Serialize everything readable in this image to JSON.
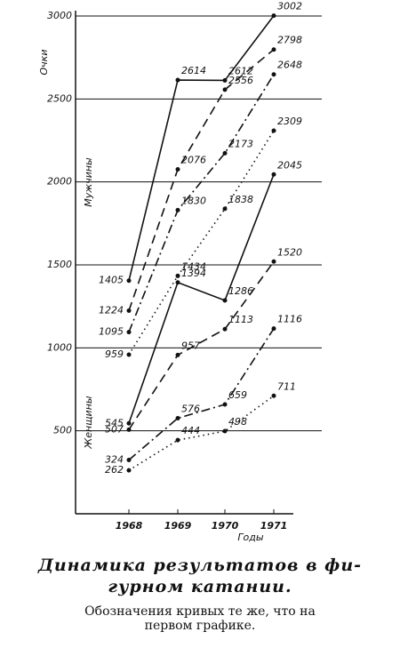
{
  "chart_data": {
    "type": "line",
    "y_label": "Очки",
    "x_label": "Годы",
    "annotations": [
      "Мужчины",
      "Женщины"
    ],
    "categories": [
      "1968",
      "1969",
      "1970",
      "1971"
    ],
    "ylim": [
      0,
      3000
    ],
    "yticks": [
      500,
      1000,
      1500,
      2000,
      2500,
      3000
    ],
    "grid": true,
    "series": [
      {
        "color": "#111111",
        "style": "solid",
        "values": [
          1405,
          2614,
          2612,
          3002
        ]
      },
      {
        "color": "#111111",
        "style": "dashed",
        "values": [
          1224,
          2076,
          2556,
          2798
        ]
      },
      {
        "color": "#111111",
        "style": "dashdot",
        "values": [
          1095,
          1830,
          2173,
          2648
        ]
      },
      {
        "color": "#111111",
        "style": "dotted",
        "values": [
          959,
          1434,
          1838,
          2309
        ]
      },
      {
        "color": "#111111",
        "style": "solid",
        "values": [
          545,
          1394,
          1286,
          2045
        ]
      },
      {
        "color": "#111111",
        "style": "dashed",
        "values": [
          507,
          957,
          1113,
          1520
        ]
      },
      {
        "color": "#111111",
        "style": "dashdot",
        "values": [
          324,
          576,
          659,
          1116
        ]
      },
      {
        "color": "#111111",
        "style": "dotted",
        "values": [
          262,
          444,
          498,
          711
        ]
      }
    ]
  },
  "caption": {
    "title_lines": [
      "Динамика результатов в фи-",
      "гурном катании."
    ],
    "note_lines": [
      "Обозначения кривых те же, что на",
      "первом графике."
    ]
  }
}
